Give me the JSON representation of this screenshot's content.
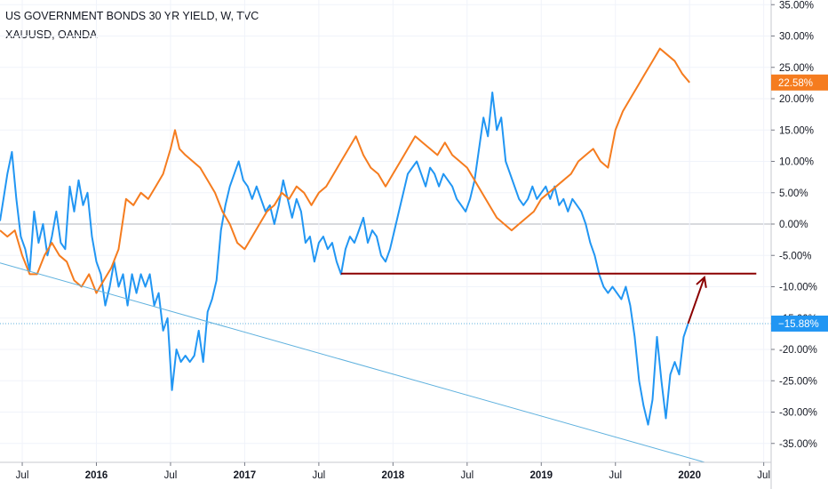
{
  "legend": {
    "primary": "US GOVERNMENT BONDS 30 YR YIELD, W, TVC",
    "secondary": "XAUUSD, OANDA"
  },
  "colors": {
    "bonds": "#2196f3",
    "gold": "#f57c1f",
    "support": "#8b0000",
    "trend": "#5fb1de",
    "grid": "#f0f3fa",
    "zero": "#b2b5be"
  },
  "chart_data": {
    "type": "line",
    "ylim": [
      -37,
      36
    ],
    "xlim": [
      2015.35,
      2020.55
    ],
    "y_ticks": [
      "35.00%",
      "30.00%",
      "25.00%",
      "20.00%",
      "15.00%",
      "10.00%",
      "5.00%",
      "0.00%",
      "-5.00%",
      "-10.00%",
      "-15.00%",
      "-20.00%",
      "-25.00%",
      "-30.00%",
      "-35.00%"
    ],
    "x_ticks": [
      {
        "label": "Jul",
        "x": 2015.5
      },
      {
        "label": "2016",
        "x": 2016.0
      },
      {
        "label": "Jul",
        "x": 2016.5
      },
      {
        "label": "2017",
        "x": 2017.0
      },
      {
        "label": "Jul",
        "x": 2017.5
      },
      {
        "label": "2018",
        "x": 2018.0
      },
      {
        "label": "Jul",
        "x": 2018.5
      },
      {
        "label": "2019",
        "x": 2019.0
      },
      {
        "label": "Jul",
        "x": 2019.5
      },
      {
        "label": "2020",
        "x": 2020.0
      },
      {
        "label": "Jul",
        "x": 2020.5
      }
    ],
    "last_values": {
      "gold": "22.58%",
      "bonds": "−15.88%"
    },
    "series": [
      {
        "key": "bonds",
        "values": [
          [
            2015.35,
            0.5
          ],
          [
            2015.38,
            5
          ],
          [
            2015.4,
            8
          ],
          [
            2015.43,
            11.5
          ],
          [
            2015.46,
            4
          ],
          [
            2015.49,
            -2
          ],
          [
            2015.52,
            -4
          ],
          [
            2015.55,
            -7.5
          ],
          [
            2015.58,
            2
          ],
          [
            2015.61,
            -3
          ],
          [
            2015.64,
            0
          ],
          [
            2015.67,
            -5
          ],
          [
            2015.7,
            -2
          ],
          [
            2015.73,
            2
          ],
          [
            2015.76,
            -3
          ],
          [
            2015.79,
            -4
          ],
          [
            2015.82,
            6
          ],
          [
            2015.85,
            2
          ],
          [
            2015.88,
            7
          ],
          [
            2015.91,
            3
          ],
          [
            2015.94,
            5
          ],
          [
            2015.97,
            -2
          ],
          [
            2016.0,
            -6
          ],
          [
            2016.03,
            -8
          ],
          [
            2016.06,
            -13
          ],
          [
            2016.09,
            -10
          ],
          [
            2016.12,
            -6
          ],
          [
            2016.15,
            -10
          ],
          [
            2016.18,
            -8
          ],
          [
            2016.21,
            -13
          ],
          [
            2016.24,
            -8
          ],
          [
            2016.27,
            -11
          ],
          [
            2016.3,
            -8
          ],
          [
            2016.33,
            -10
          ],
          [
            2016.36,
            -8
          ],
          [
            2016.39,
            -13
          ],
          [
            2016.42,
            -11
          ],
          [
            2016.45,
            -17
          ],
          [
            2016.48,
            -15
          ],
          [
            2016.51,
            -26.5
          ],
          [
            2016.54,
            -20
          ],
          [
            2016.57,
            -22
          ],
          [
            2016.6,
            -21
          ],
          [
            2016.63,
            -22
          ],
          [
            2016.66,
            -21
          ],
          [
            2016.69,
            -17
          ],
          [
            2016.72,
            -22
          ],
          [
            2016.75,
            -14
          ],
          [
            2016.78,
            -12
          ],
          [
            2016.81,
            -9
          ],
          [
            2016.84,
            -1
          ],
          [
            2016.87,
            3
          ],
          [
            2016.9,
            6
          ],
          [
            2016.93,
            8
          ],
          [
            2016.96,
            10
          ],
          [
            2016.99,
            7
          ],
          [
            2017.02,
            6
          ],
          [
            2017.05,
            4
          ],
          [
            2017.08,
            6
          ],
          [
            2017.11,
            4
          ],
          [
            2017.14,
            2
          ],
          [
            2017.17,
            3
          ],
          [
            2017.2,
            0
          ],
          [
            2017.23,
            3
          ],
          [
            2017.26,
            7
          ],
          [
            2017.29,
            4
          ],
          [
            2017.32,
            1
          ],
          [
            2017.35,
            4
          ],
          [
            2017.38,
            2
          ],
          [
            2017.41,
            -3
          ],
          [
            2017.44,
            -2
          ],
          [
            2017.47,
            -6
          ],
          [
            2017.5,
            -3
          ],
          [
            2017.53,
            -2
          ],
          [
            2017.56,
            -4
          ],
          [
            2017.59,
            -3
          ],
          [
            2017.62,
            -6
          ],
          [
            2017.65,
            -8
          ],
          [
            2017.68,
            -4
          ],
          [
            2017.71,
            -2
          ],
          [
            2017.74,
            -3
          ],
          [
            2017.77,
            -1
          ],
          [
            2017.8,
            1
          ],
          [
            2017.83,
            -3
          ],
          [
            2017.86,
            -1
          ],
          [
            2017.89,
            -2
          ],
          [
            2017.92,
            -5
          ],
          [
            2017.95,
            -6
          ],
          [
            2017.98,
            -4
          ],
          [
            2018.01,
            -1
          ],
          [
            2018.04,
            2
          ],
          [
            2018.07,
            5
          ],
          [
            2018.1,
            8
          ],
          [
            2018.13,
            9
          ],
          [
            2018.16,
            10
          ],
          [
            2018.19,
            8
          ],
          [
            2018.22,
            6
          ],
          [
            2018.25,
            9
          ],
          [
            2018.28,
            8
          ],
          [
            2018.31,
            6
          ],
          [
            2018.34,
            8
          ],
          [
            2018.37,
            7
          ],
          [
            2018.4,
            6
          ],
          [
            2018.43,
            4
          ],
          [
            2018.46,
            3
          ],
          [
            2018.49,
            2
          ],
          [
            2018.52,
            4
          ],
          [
            2018.55,
            7
          ],
          [
            2018.58,
            12
          ],
          [
            2018.61,
            17
          ],
          [
            2018.64,
            14
          ],
          [
            2018.67,
            21
          ],
          [
            2018.7,
            15
          ],
          [
            2018.73,
            17
          ],
          [
            2018.76,
            10
          ],
          [
            2018.79,
            8
          ],
          [
            2018.82,
            6
          ],
          [
            2018.85,
            4
          ],
          [
            2018.88,
            3
          ],
          [
            2018.91,
            4
          ],
          [
            2018.94,
            6
          ],
          [
            2018.97,
            4
          ],
          [
            2019.0,
            5
          ],
          [
            2019.03,
            6
          ],
          [
            2019.06,
            4
          ],
          [
            2019.09,
            6
          ],
          [
            2019.12,
            3
          ],
          [
            2019.15,
            4
          ],
          [
            2019.18,
            2
          ],
          [
            2019.21,
            4
          ],
          [
            2019.24,
            3
          ],
          [
            2019.27,
            2
          ],
          [
            2019.3,
            0
          ],
          [
            2019.33,
            -3
          ],
          [
            2019.36,
            -5
          ],
          [
            2019.39,
            -8
          ],
          [
            2019.42,
            -10
          ],
          [
            2019.45,
            -11
          ],
          [
            2019.48,
            -10
          ],
          [
            2019.51,
            -11
          ],
          [
            2019.54,
            -12
          ],
          [
            2019.57,
            -10
          ],
          [
            2019.6,
            -13
          ],
          [
            2019.63,
            -18
          ],
          [
            2019.66,
            -25
          ],
          [
            2019.69,
            -29
          ],
          [
            2019.72,
            -32
          ],
          [
            2019.75,
            -28
          ],
          [
            2019.78,
            -18
          ],
          [
            2019.81,
            -25
          ],
          [
            2019.84,
            -31
          ],
          [
            2019.87,
            -24
          ],
          [
            2019.9,
            -22
          ],
          [
            2019.93,
            -24
          ],
          [
            2019.96,
            -18
          ],
          [
            2019.99,
            -15.88
          ]
        ]
      },
      {
        "key": "gold",
        "values": [
          [
            2015.35,
            -1
          ],
          [
            2015.4,
            -2
          ],
          [
            2015.45,
            -1
          ],
          [
            2015.5,
            -5
          ],
          [
            2015.55,
            -8
          ],
          [
            2015.6,
            -8
          ],
          [
            2015.65,
            -5
          ],
          [
            2015.7,
            -3
          ],
          [
            2015.75,
            -5
          ],
          [
            2015.8,
            -6
          ],
          [
            2015.85,
            -9
          ],
          [
            2015.9,
            -10
          ],
          [
            2015.95,
            -8
          ],
          [
            2016.0,
            -11
          ],
          [
            2016.05,
            -9
          ],
          [
            2016.1,
            -7
          ],
          [
            2016.15,
            -4
          ],
          [
            2016.2,
            4
          ],
          [
            2016.25,
            3
          ],
          [
            2016.3,
            5
          ],
          [
            2016.35,
            4
          ],
          [
            2016.4,
            6
          ],
          [
            2016.45,
            8
          ],
          [
            2016.5,
            12
          ],
          [
            2016.53,
            15
          ],
          [
            2016.56,
            12
          ],
          [
            2016.6,
            11
          ],
          [
            2016.65,
            10
          ],
          [
            2016.7,
            9
          ],
          [
            2016.75,
            7
          ],
          [
            2016.8,
            5
          ],
          [
            2016.85,
            2
          ],
          [
            2016.9,
            0
          ],
          [
            2016.95,
            -3
          ],
          [
            2017.0,
            -4
          ],
          [
            2017.05,
            -2
          ],
          [
            2017.1,
            0
          ],
          [
            2017.15,
            2
          ],
          [
            2017.2,
            3
          ],
          [
            2017.25,
            5
          ],
          [
            2017.3,
            4
          ],
          [
            2017.35,
            6
          ],
          [
            2017.4,
            5
          ],
          [
            2017.45,
            3
          ],
          [
            2017.5,
            5
          ],
          [
            2017.55,
            6
          ],
          [
            2017.6,
            8
          ],
          [
            2017.65,
            10
          ],
          [
            2017.7,
            12
          ],
          [
            2017.75,
            14
          ],
          [
            2017.8,
            11
          ],
          [
            2017.85,
            9
          ],
          [
            2017.9,
            8
          ],
          [
            2017.95,
            6
          ],
          [
            2018.0,
            8
          ],
          [
            2018.05,
            10
          ],
          [
            2018.1,
            12
          ],
          [
            2018.15,
            14
          ],
          [
            2018.2,
            13
          ],
          [
            2018.25,
            12
          ],
          [
            2018.3,
            11
          ],
          [
            2018.35,
            13
          ],
          [
            2018.4,
            11
          ],
          [
            2018.45,
            10
          ],
          [
            2018.5,
            9
          ],
          [
            2018.55,
            7
          ],
          [
            2018.6,
            5
          ],
          [
            2018.65,
            3
          ],
          [
            2018.7,
            1
          ],
          [
            2018.75,
            0
          ],
          [
            2018.8,
            -1
          ],
          [
            2018.85,
            0
          ],
          [
            2018.9,
            1
          ],
          [
            2018.95,
            2
          ],
          [
            2019.0,
            4
          ],
          [
            2019.05,
            5
          ],
          [
            2019.1,
            6
          ],
          [
            2019.15,
            7
          ],
          [
            2019.2,
            8
          ],
          [
            2019.25,
            10
          ],
          [
            2019.3,
            11
          ],
          [
            2019.35,
            12
          ],
          [
            2019.4,
            10
          ],
          [
            2019.45,
            9
          ],
          [
            2019.5,
            15
          ],
          [
            2019.55,
            18
          ],
          [
            2019.6,
            20
          ],
          [
            2019.65,
            22
          ],
          [
            2019.7,
            24
          ],
          [
            2019.75,
            26
          ],
          [
            2019.8,
            28
          ],
          [
            2019.85,
            27
          ],
          [
            2019.9,
            26
          ],
          [
            2019.95,
            24
          ],
          [
            2020.0,
            22.58
          ]
        ]
      }
    ],
    "support_level": -7.9,
    "support_range": [
      2017.65,
      2020.45
    ],
    "arrow": {
      "from": [
        2019.99,
        -15.88
      ],
      "to": [
        2020.1,
        -8.5
      ]
    },
    "trendline": {
      "from": [
        2015.35,
        -6.2
      ],
      "to": [
        2020.1,
        -38
      ]
    }
  }
}
